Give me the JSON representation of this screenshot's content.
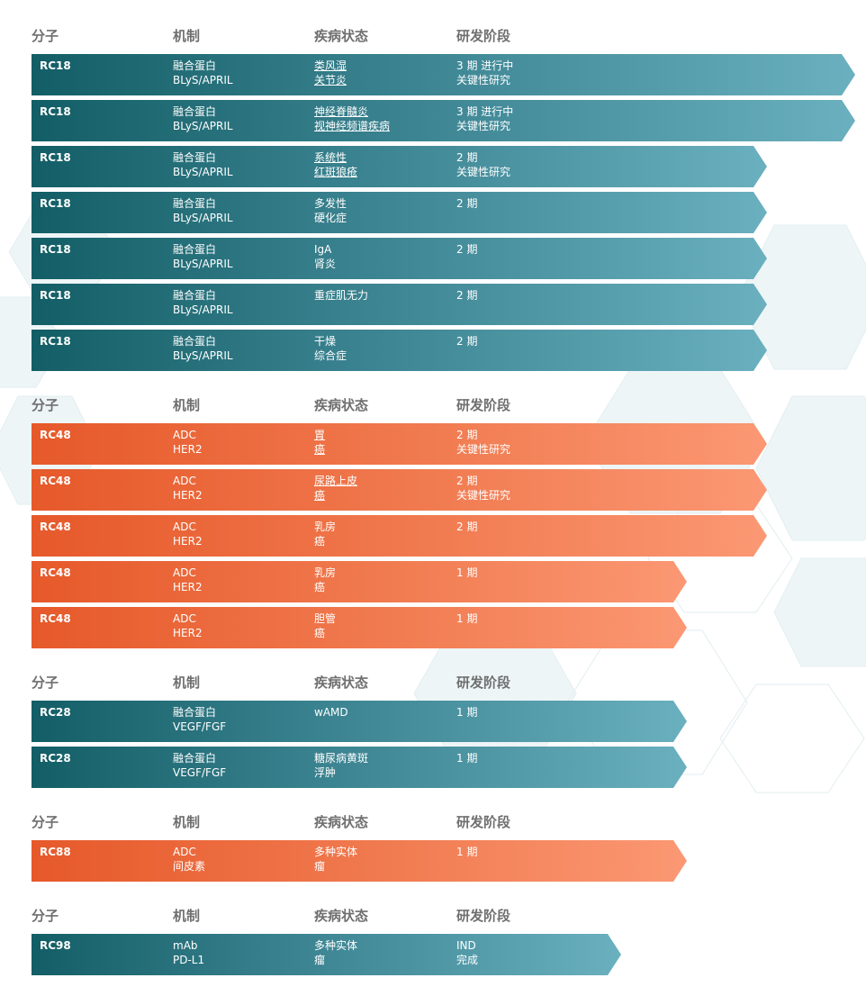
{
  "header_labels": {
    "molecule": "分子",
    "mechanism": "机制",
    "disease": "疾病状态",
    "stage": "研发阶段"
  },
  "sections": [
    {
      "color": "teal",
      "rows": [
        {
          "molecule": "RC18",
          "mechanism": [
            "融合蛋白",
            "BLyS/APRIL"
          ],
          "disease": [
            "类风湿",
            "关节炎"
          ],
          "disease_link": true,
          "stage": [
            "3 期 进行中",
            "关键性研究"
          ],
          "progress": "phase-3"
        },
        {
          "molecule": "RC18",
          "mechanism": [
            "融合蛋白",
            "BLyS/APRIL"
          ],
          "disease": [
            "神经脊髓炎",
            "视神经频谱疾病"
          ],
          "disease_link": true,
          "stage": [
            "3 期 进行中",
            "关键性研究"
          ],
          "progress": "phase-3"
        },
        {
          "molecule": "RC18",
          "mechanism": [
            "融合蛋白",
            "BLyS/APRIL"
          ],
          "disease": [
            "系统性",
            "红斑狼疮"
          ],
          "disease_link": true,
          "stage": [
            "2 期",
            "关键性研究"
          ],
          "progress": "phase-2"
        },
        {
          "molecule": "RC18",
          "mechanism": [
            "融合蛋白",
            "BLyS/APRIL"
          ],
          "disease": [
            "多发性",
            "硬化症"
          ],
          "disease_link": false,
          "stage": [
            "2 期",
            ""
          ],
          "progress": "phase-2"
        },
        {
          "molecule": "RC18",
          "mechanism": [
            "融合蛋白",
            "BLyS/APRIL"
          ],
          "disease": [
            "IgA",
            "肾炎"
          ],
          "disease_link": false,
          "stage": [
            "2 期",
            ""
          ],
          "progress": "phase-2"
        },
        {
          "molecule": "RC18",
          "mechanism": [
            "融合蛋白",
            "BLyS/APRIL"
          ],
          "disease": [
            "重症肌无力",
            ""
          ],
          "disease_link": false,
          "stage": [
            "2 期",
            ""
          ],
          "progress": "phase-2"
        },
        {
          "molecule": "RC18",
          "mechanism": [
            "融合蛋白",
            "BLyS/APRIL"
          ],
          "disease": [
            "干燥",
            "综合症"
          ],
          "disease_link": false,
          "stage": [
            "2 期",
            ""
          ],
          "progress": "phase-2"
        }
      ]
    },
    {
      "color": "orange",
      "rows": [
        {
          "molecule": "RC48",
          "mechanism": [
            "ADC",
            "HER2"
          ],
          "disease": [
            "胃",
            "癌"
          ],
          "disease_link": true,
          "stage": [
            "2 期",
            "关键性研究"
          ],
          "progress": "phase-2"
        },
        {
          "molecule": "RC48",
          "mechanism": [
            "ADC",
            "HER2"
          ],
          "disease": [
            "尿路上皮",
            "癌"
          ],
          "disease_link": true,
          "stage": [
            "2 期",
            "关键性研究"
          ],
          "progress": "phase-2"
        },
        {
          "molecule": "RC48",
          "mechanism": [
            "ADC",
            "HER2"
          ],
          "disease": [
            "乳房",
            "癌"
          ],
          "disease_link": false,
          "stage": [
            "2 期",
            ""
          ],
          "progress": "phase-2"
        },
        {
          "molecule": "RC48",
          "mechanism": [
            "ADC",
            "HER2"
          ],
          "disease": [
            "乳房",
            "癌"
          ],
          "disease_link": false,
          "stage": [
            "1 期",
            ""
          ],
          "progress": "phase-1"
        },
        {
          "molecule": "RC48",
          "mechanism": [
            "ADC",
            "HER2"
          ],
          "disease": [
            "胆管",
            "癌"
          ],
          "disease_link": false,
          "stage": [
            "1 期",
            ""
          ],
          "progress": "phase-1"
        }
      ]
    },
    {
      "color": "teal",
      "rows": [
        {
          "molecule": "RC28",
          "mechanism": [
            "融合蛋白",
            "VEGF/FGF"
          ],
          "disease": [
            "wAMD",
            ""
          ],
          "disease_link": false,
          "stage": [
            "1 期",
            ""
          ],
          "progress": "phase-1"
        },
        {
          "molecule": "RC28",
          "mechanism": [
            "融合蛋白",
            "VEGF/FGF"
          ],
          "disease": [
            "糖尿病黄斑",
            "浮肿"
          ],
          "disease_link": false,
          "stage": [
            "1 期",
            ""
          ],
          "progress": "phase-1"
        }
      ]
    },
    {
      "color": "orange",
      "rows": [
        {
          "molecule": "RC88",
          "mechanism": [
            "ADC",
            "间皮素"
          ],
          "disease": [
            "多种实体",
            "瘤"
          ],
          "disease_link": false,
          "stage": [
            "1 期",
            ""
          ],
          "progress": "phase-1"
        }
      ]
    },
    {
      "color": "teal",
      "rows": [
        {
          "molecule": "RC98",
          "mechanism": [
            "mAb",
            "PD-L1"
          ],
          "disease": [
            "多种实体",
            "瘤"
          ],
          "disease_link": false,
          "stage": [
            "IND",
            "完成"
          ],
          "progress": "ind"
        }
      ]
    }
  ]
}
